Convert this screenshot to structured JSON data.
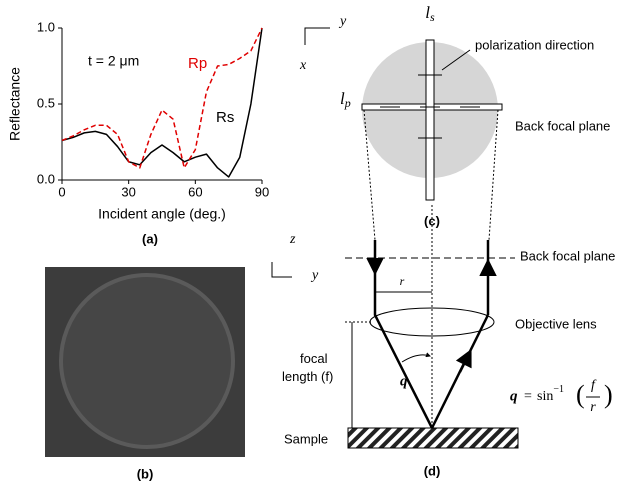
{
  "chart_data": {
    "type": "line",
    "x": [
      0,
      5,
      10,
      15,
      20,
      25,
      30,
      35,
      40,
      45,
      50,
      55,
      60,
      65,
      70,
      75,
      80,
      85,
      90
    ],
    "series": [
      {
        "name": "Rs",
        "color": "#000000",
        "dash": false,
        "values": [
          0.26,
          0.28,
          0.31,
          0.32,
          0.3,
          0.22,
          0.12,
          0.1,
          0.18,
          0.23,
          0.18,
          0.12,
          0.15,
          0.17,
          0.08,
          0.02,
          0.15,
          0.5,
          1.0
        ]
      },
      {
        "name": "Rp",
        "color": "#e00000",
        "dash": true,
        "values": [
          0.26,
          0.29,
          0.33,
          0.36,
          0.36,
          0.3,
          0.12,
          0.08,
          0.3,
          0.46,
          0.4,
          0.08,
          0.2,
          0.58,
          0.75,
          0.76,
          0.8,
          0.85,
          1.0
        ]
      }
    ],
    "xlim": [
      0,
      90
    ],
    "xticks": [
      0,
      30,
      60,
      90
    ],
    "ylim": [
      0,
      1
    ],
    "yticks": [
      {
        "value": 0,
        "label": "0.0"
      },
      {
        "value": 0.5,
        "label": "0.5"
      },
      {
        "value": 1,
        "label": "1.0"
      }
    ],
    "xlabel": "Incident angle (deg.)",
    "ylabel": "Reflectance",
    "annotation": "t = 2 μm",
    "panel": "(a)"
  },
  "panel_b": {
    "label": "(b)"
  },
  "panel_c": {
    "axis_y": "y",
    "axis_x": "x",
    "ls": {
      "main": "l",
      "sub": "s"
    },
    "lp": {
      "main": "l",
      "sub": "p"
    },
    "polarization": "polarization direction",
    "back_focal_plane": "Back focal plane",
    "label": "(c)"
  },
  "panel_d": {
    "axis_z": "z",
    "axis_y": "y",
    "back_focal_plane": "Back focal plane",
    "r": "r",
    "objective": "Objective lens",
    "focal_length": [
      "focal",
      "length (f)"
    ],
    "angle": "q",
    "formula": {
      "lhs": "q",
      "equals": "=",
      "func": "sin",
      "exponent": "−1",
      "numerator": "f",
      "denominator": "r"
    },
    "sample": "Sample",
    "label": "(d)"
  }
}
